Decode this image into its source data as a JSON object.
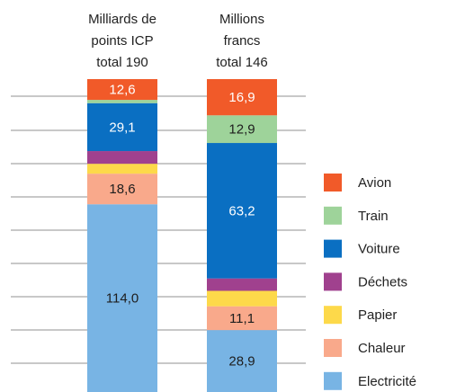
{
  "chart_data": {
    "type": "bar",
    "stacked": true,
    "categories": [
      [
        "Milliards de",
        "points ICP",
        "total 190"
      ],
      [
        "Millions",
        "francs",
        "total 146"
      ]
    ],
    "series": [
      {
        "name": "Electricité",
        "color": "#78b4e4",
        "label_color": "#1e1e1e",
        "values": [
          114.0,
          28.9
        ],
        "value_labels": [
          "114,0",
          "28,9"
        ]
      },
      {
        "name": "Chaleur",
        "color": "#f9a98b",
        "label_color": "#1e1e1e",
        "values": [
          18.6,
          11.1
        ],
        "value_labels": [
          "18,6",
          "11,1"
        ]
      },
      {
        "name": "Papier",
        "color": "#fdd94a",
        "label_color": "#1e1e1e",
        "values": [
          6.0,
          7.2
        ],
        "value_labels": [
          null,
          null
        ]
      },
      {
        "name": "Déchets",
        "color": "#a0418e",
        "label_color": "#ffffff",
        "values": [
          7.7,
          5.8
        ],
        "value_labels": [
          null,
          null
        ]
      },
      {
        "name": "Voiture",
        "color": "#0a6fc2",
        "label_color": "#ffffff",
        "values": [
          29.1,
          63.2
        ],
        "value_labels": [
          "29,1",
          "63,2"
        ]
      },
      {
        "name": "Train",
        "color": "#9ed39a",
        "label_color": "#1e1e1e",
        "values": [
          2.0,
          12.9
        ],
        "value_labels": [
          null,
          "12,9"
        ]
      },
      {
        "name": "Avion",
        "color": "#f15a29",
        "label_color": "#ffffff",
        "values": [
          12.6,
          16.9
        ],
        "value_labels": [
          "12,6",
          "16,9"
        ]
      }
    ]
  }
}
